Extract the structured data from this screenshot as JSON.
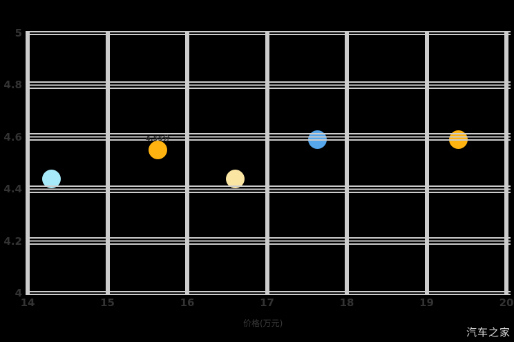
{
  "watermark": "汽车之家",
  "chart_data": {
    "type": "scatter",
    "title": "",
    "xlabel": "价格(万元)",
    "ylabel": "",
    "xlim": [
      14,
      20
    ],
    "ylim": [
      4,
      5
    ],
    "x_ticks": [
      14,
      15,
      16,
      17,
      18,
      19,
      20
    ],
    "y_ticks": [
      "5",
      "4.8",
      "4.6",
      "4.4",
      "4.2",
      "4"
    ],
    "grid": "on",
    "legend": "none",
    "background_color": "#000000",
    "grid_color": "#cdcdcd",
    "axis_label_color": "#333333",
    "points": [
      {
        "x": 14.3,
        "y": 4.44,
        "color": "#a6e9f8",
        "label": ""
      },
      {
        "x": 15.63,
        "y": 4.55,
        "color": "#ffb310",
        "label": "4.55分"
      },
      {
        "x": 16.6,
        "y": 4.44,
        "color": "#fbe5a3",
        "label": ""
      },
      {
        "x": 17.63,
        "y": 4.59,
        "color": "#55a6eb",
        "label": ""
      },
      {
        "x": 19.4,
        "y": 4.59,
        "color": "#ffb310",
        "label": ""
      }
    ]
  }
}
